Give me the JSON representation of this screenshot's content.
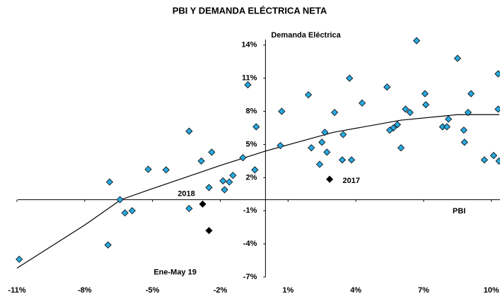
{
  "chart_data": {
    "type": "scatter",
    "title": "PBI Y DEMANDA ELÉCTRICA NETA",
    "x_label": "PBI",
    "y_label": "Demanda Eléctrica",
    "annotations": [
      {
        "text": "2018",
        "x": -3.5,
        "y": 0.5
      },
      {
        "text": "2017",
        "x": 3.8,
        "y": 1.7
      },
      {
        "text": "Ene-May 19",
        "x": -4.0,
        "y": -6.6
      }
    ],
    "xlim": [
      -11.5,
      10.35
    ],
    "ylim": [
      -7,
      14.5
    ],
    "xticks": [
      {
        "value": -11,
        "label": "-11%"
      },
      {
        "value": -8,
        "label": "-8%"
      },
      {
        "value": -5,
        "label": "-5%"
      },
      {
        "value": -2,
        "label": "-2%"
      },
      {
        "value": 1,
        "label": "1%"
      },
      {
        "value": 4,
        "label": "4%"
      },
      {
        "value": 7,
        "label": "7%"
      },
      {
        "value": 10,
        "label": "10%"
      }
    ],
    "yticks": [
      {
        "value": -7,
        "label": "-7%"
      },
      {
        "value": -4,
        "label": "-4%"
      },
      {
        "value": -1,
        "label": "-1%"
      },
      {
        "value": 2,
        "label": "2%"
      },
      {
        "value": 5,
        "label": "5%"
      },
      {
        "value": 8,
        "label": "8%"
      },
      {
        "value": 11,
        "label": "11%"
      },
      {
        "value": 14,
        "label": "14%"
      }
    ],
    "series": [
      {
        "color": "#29a9e0",
        "x": [
          6.69,
          8.5,
          10.3,
          3.72,
          -0.78,
          5.38,
          7.06,
          1.9,
          9.1,
          4.28,
          7.1,
          0.72,
          3.06,
          6.2,
          6.4,
          10.3,
          8.97,
          8.1,
          7.84,
          8.03,
          5.84,
          5.66,
          5.5,
          2.63,
          3.44,
          -0.41,
          -3.38,
          8.78,
          8.81,
          2.5,
          0.66,
          2.03,
          6.0,
          -2.38,
          2.72,
          -1.0,
          -2.84,
          3.4,
          3.81,
          9.69,
          10.1,
          10.34,
          2.4,
          -5.19,
          -4.4,
          -0.47,
          -1.44,
          -1.88,
          -1.6,
          -6.9,
          -2.5,
          -1.81,
          -6.44,
          -5.9,
          -6.22,
          -3.38,
          -6.97,
          -10.9
        ],
        "values": [
          14.4,
          12.8,
          11.4,
          11.0,
          10.4,
          10.2,
          9.6,
          9.5,
          9.6,
          8.75,
          8.6,
          8.0,
          7.9,
          8.2,
          7.9,
          8.2,
          7.9,
          7.3,
          6.6,
          6.6,
          6.8,
          6.5,
          6.3,
          6.1,
          5.9,
          6.6,
          6.2,
          6.3,
          5.2,
          5.2,
          4.9,
          4.7,
          4.7,
          4.3,
          4.3,
          3.8,
          3.5,
          3.6,
          3.6,
          3.6,
          4.0,
          3.5,
          3.2,
          2.75,
          2.7,
          2.7,
          2.2,
          1.7,
          1.6,
          1.6,
          1.1,
          0.9,
          0.0,
          -1.0,
          -1.2,
          -0.8,
          -4.1,
          -5.4
        ]
      },
      {
        "color": "#000000",
        "x": [
          -2.78,
          -2.5,
          2.84
        ],
        "values": [
          -0.4,
          -2.8,
          1.85
        ]
      }
    ],
    "trendline": {
      "color": "#000000",
      "x": [
        -11,
        -8,
        -6.4,
        -5,
        -2,
        0,
        3,
        6,
        8.5,
        10.35
      ],
      "values": [
        -6.2,
        -2.3,
        0,
        1.0,
        3.1,
        4.4,
        6.1,
        7.2,
        7.7,
        7.7
      ]
    }
  }
}
